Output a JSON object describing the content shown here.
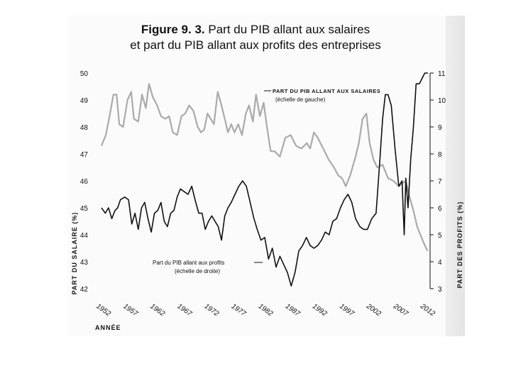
{
  "figure": {
    "label": "Figure 9. 3.",
    "title_line1": "Part du PIB allant aux salaires",
    "title_line2": "et part du PIB allant aux profits des entreprises"
  },
  "chart_data": {
    "type": "line",
    "title": "Figure 9. 3. Part du PIB allant aux salaires et part du PIB allant aux profits des entreprises",
    "xlabel": "ANNÉE",
    "ylabel_left": "PART DU SALAIRE (%)",
    "ylabel_right": "PART DES PROFITS (%)",
    "x_ticks": [
      "1952",
      "1957",
      "1962",
      "1967",
      "1972",
      "1977",
      "1982",
      "1987",
      "1992",
      "1997",
      "2002",
      "2007",
      "2012"
    ],
    "y_left_ticks": [
      "42",
      "43",
      "44",
      "45",
      "46",
      "47",
      "48",
      "49",
      "50"
    ],
    "y_right_ticks": [
      "3",
      "4",
      "5",
      "6",
      "7",
      "8",
      "9",
      "10",
      "11"
    ],
    "ylim_left": [
      42,
      50
    ],
    "ylim_right": [
      3,
      11
    ],
    "xlim": [
      1952,
      2012
    ],
    "series": [
      {
        "name": "PART DU PIB ALLANT AUX SALAIRES",
        "axis": "left",
        "color": "#aaaaaa",
        "annotation_line1": "PART DU PIB ALLANT AUX SALAIRES",
        "annotation_line2": "(échelle de gauche)",
        "x": [
          1952,
          1952.8,
          1953.5,
          1954.2,
          1954.8,
          1955.3,
          1956.0,
          1956.8,
          1957.5,
          1958.0,
          1958.8,
          1959.5,
          1960.2,
          1960.8,
          1961.5,
          1962.3,
          1963.0,
          1963.8,
          1964.5,
          1965.2,
          1966.0,
          1966.8,
          1967.5,
          1968.2,
          1969.0,
          1969.8,
          1970.4,
          1971.0,
          1971.6,
          1972.2,
          1972.8,
          1973.5,
          1974.2,
          1974.8,
          1975.4,
          1976.0,
          1976.6,
          1977.3,
          1978.0,
          1978.7,
          1979.3,
          1980.0,
          1980.6,
          1981.3,
          1982.0,
          1982.6,
          1983.3,
          1984.0,
          1985.0,
          1986.0,
          1987.0,
          1988.0,
          1989.0,
          1990.0,
          1990.6,
          1991.3,
          1992.0,
          1993.0,
          1994.0,
          1995.0,
          1995.8,
          1996.5,
          1997.2,
          1998.0,
          1999.0,
          1999.6,
          2000.3,
          2001.0,
          2001.6,
          2002.3,
          2003.0,
          2004.0,
          2005.0,
          2006.0,
          2007.0,
          2007.6,
          2008.3,
          2009.0,
          2009.7,
          2010.4,
          2011.0,
          2011.6,
          2012.3
        ],
        "values": [
          47.3,
          47.7,
          48.4,
          49.2,
          49.2,
          48.1,
          48.0,
          49.0,
          49.3,
          48.3,
          48.2,
          49.2,
          48.7,
          49.6,
          49.1,
          48.8,
          48.4,
          48.3,
          48.4,
          47.8,
          47.7,
          48.4,
          48.5,
          48.8,
          48.6,
          48.0,
          47.8,
          47.9,
          48.5,
          48.3,
          48.1,
          49.3,
          48.8,
          48.3,
          47.8,
          48.1,
          47.8,
          48.1,
          47.7,
          48.5,
          48.8,
          48.2,
          49.2,
          48.4,
          48.9,
          48.0,
          47.1,
          47.1,
          46.9,
          47.6,
          47.7,
          47.3,
          47.2,
          47.4,
          47.2,
          47.8,
          47.6,
          47.2,
          46.8,
          46.5,
          46.2,
          46.1,
          45.8,
          46.2,
          46.9,
          47.4,
          48.3,
          48.5,
          47.4,
          46.8,
          46.5,
          46.6,
          46.1,
          46.0,
          45.8,
          45.9,
          46.0,
          45.4,
          44.9,
          44.3,
          44.0,
          43.7,
          43.4
        ]
      },
      {
        "name": "Part du PIB allant aux profits",
        "axis": "right",
        "color": "#111111",
        "annotation_line1": "Part du PIB allant aux profits",
        "annotation_line2": "(échelle de droite)",
        "x": [
          1952,
          1952.7,
          1953.3,
          1953.9,
          1954.5,
          1955.0,
          1955.5,
          1956.3,
          1957.0,
          1957.6,
          1958.2,
          1958.8,
          1959.4,
          1960.0,
          1960.6,
          1961.2,
          1961.8,
          1962.4,
          1963.0,
          1963.6,
          1964.2,
          1964.8,
          1965.4,
          1966.0,
          1966.6,
          1967.3,
          1968.0,
          1968.7,
          1969.3,
          1970.0,
          1970.6,
          1971.2,
          1971.8,
          1972.4,
          1973.0,
          1973.6,
          1974.2,
          1974.8,
          1975.4,
          1976.0,
          1976.7,
          1977.4,
          1978.1,
          1978.8,
          1979.5,
          1980.2,
          1980.8,
          1981.5,
          1982.2,
          1982.9,
          1983.6,
          1984.3,
          1985.0,
          1985.7,
          1986.4,
          1987.1,
          1987.8,
          1988.5,
          1989.2,
          1989.9,
          1990.6,
          1991.3,
          1992.0,
          1992.7,
          1993.4,
          1994.1,
          1994.8,
          1995.5,
          1996.2,
          1996.9,
          1997.6,
          1998.3,
          1999.0,
          1999.8,
          2000.5,
          2001.2,
          2002.0,
          2002.8,
          2003.5,
          2004.0,
          2004.5,
          2005.0,
          2005.6,
          2006.3,
          2007.0,
          2007.6,
          2008.0,
          2008.3,
          2008.7,
          2009.2,
          2009.7,
          2010.2,
          2010.8,
          2011.3,
          2011.8,
          2012.4
        ],
        "values": [
          6.0,
          5.8,
          6.0,
          5.6,
          5.9,
          6.0,
          6.3,
          6.4,
          6.3,
          5.4,
          5.8,
          5.2,
          6.0,
          6.2,
          5.6,
          5.1,
          5.8,
          5.9,
          6.2,
          5.5,
          5.3,
          5.8,
          5.9,
          6.4,
          6.7,
          6.6,
          6.5,
          6.8,
          6.3,
          5.8,
          5.8,
          5.2,
          5.5,
          5.7,
          5.5,
          5.3,
          4.8,
          5.7,
          6.0,
          6.2,
          6.5,
          6.8,
          7.0,
          6.8,
          6.2,
          5.6,
          5.2,
          4.8,
          4.9,
          4.1,
          4.5,
          3.8,
          4.2,
          3.9,
          3.6,
          3.1,
          3.6,
          4.4,
          4.6,
          4.9,
          4.6,
          4.5,
          4.6,
          4.8,
          5.1,
          5.0,
          5.5,
          5.6,
          6.0,
          6.3,
          6.5,
          6.2,
          5.6,
          5.3,
          5.2,
          5.2,
          5.6,
          5.8,
          7.8,
          9.3,
          10.2,
          10.2,
          9.8,
          8.2,
          6.8,
          7.0,
          5.0,
          7.1,
          6.0,
          7.8,
          9.0,
          10.6,
          10.6,
          10.8,
          11.0,
          11.0
        ]
      }
    ]
  }
}
